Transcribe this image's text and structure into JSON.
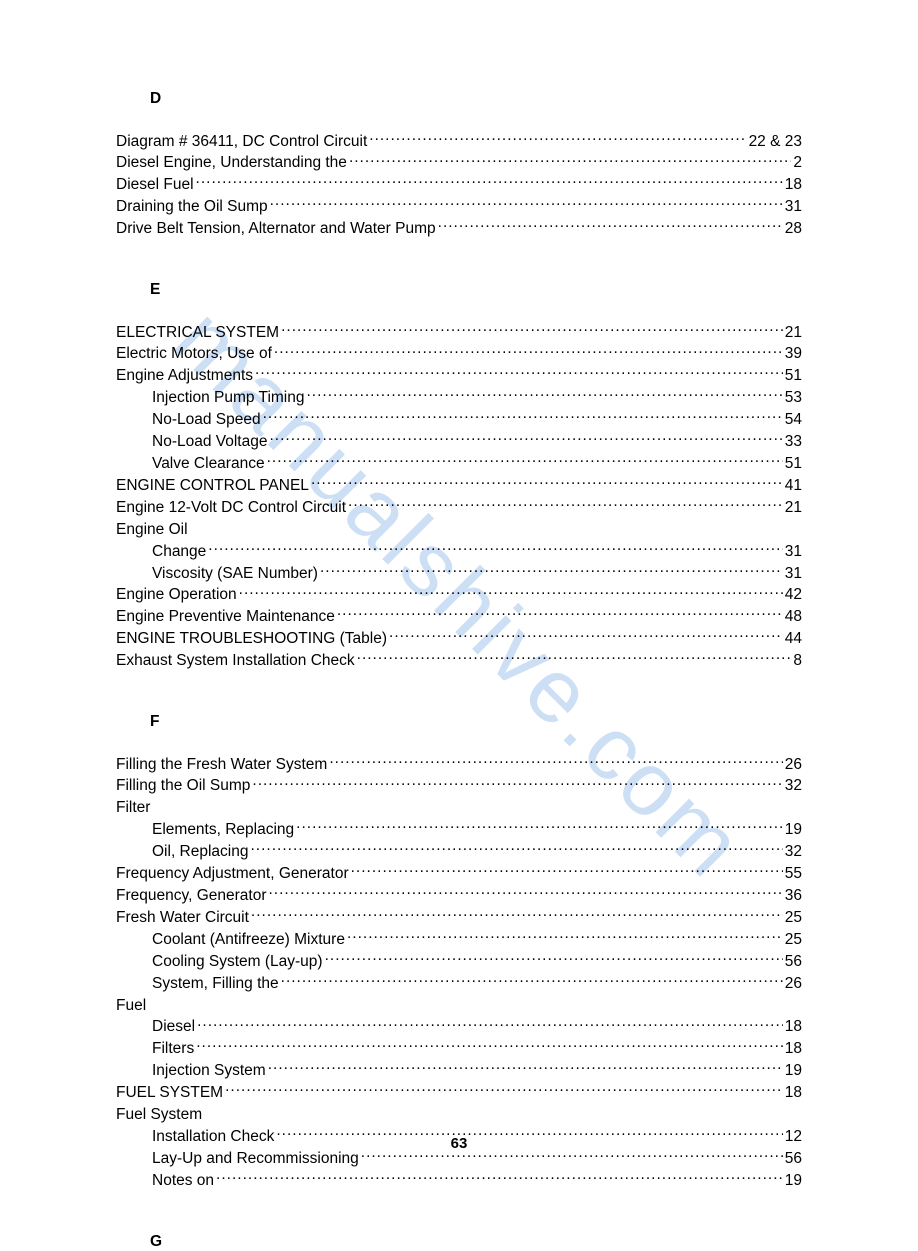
{
  "watermark": "manualshive.com",
  "page_number": "63",
  "sections": [
    {
      "letter": "D",
      "entries": [
        {
          "label": "Diagram # 36411, DC Control Circuit",
          "page": "22 & 23",
          "indent": 0
        },
        {
          "label": "Diesel Engine, Understanding the",
          "page": "2",
          "indent": 0
        },
        {
          "label": "Diesel Fuel",
          "page": "18",
          "indent": 0
        },
        {
          "label": "Draining the Oil Sump",
          "page": "31",
          "indent": 0
        },
        {
          "label": "Drive Belt Tension, Alternator and Water Pump",
          "page": "28",
          "indent": 0
        }
      ]
    },
    {
      "letter": "E",
      "entries": [
        {
          "label": "ELECTRICAL SYSTEM",
          "page": " 21",
          "indent": 0
        },
        {
          "label": "Electric Motors, Use of",
          "page": "39",
          "indent": 0
        },
        {
          "label": "Engine Adjustments",
          "page": "51",
          "indent": 0
        },
        {
          "label": "Injection Pump Timing",
          "page": "53",
          "indent": 1
        },
        {
          "label": "No-Load Speed",
          "page": "54",
          "indent": 1
        },
        {
          "label": "No-Load Voltage",
          "page": "33",
          "indent": 1
        },
        {
          "label": "Valve Clearance",
          "page": "51",
          "indent": 1
        },
        {
          "label": "ENGINE CONTROL PANEL",
          "page": " 41",
          "indent": 0
        },
        {
          "label": "Engine 12-Volt DC Control Circuit",
          "page": "21",
          "indent": 0
        },
        {
          "label": "Engine Oil",
          "page": "",
          "indent": 0,
          "nopage": true
        },
        {
          "label": "Change",
          "page": " 31",
          "indent": 1
        },
        {
          "label": "Viscosity (SAE Number)",
          "page": " 31",
          "indent": 1
        },
        {
          "label": "Engine Operation",
          "page": " 42",
          "indent": 0
        },
        {
          "label": "Engine Preventive Maintenance",
          "page": " 48",
          "indent": 0
        },
        {
          "label": "ENGINE TROUBLESHOOTING (Table)",
          "page": " 44",
          "indent": 0
        },
        {
          "label": "Exhaust System Installation Check",
          "page": " 8",
          "indent": 0
        }
      ]
    },
    {
      "letter": "F",
      "entries": [
        {
          "label": "Filling the Fresh Water System",
          "page": "26",
          "indent": 0
        },
        {
          "label": "Filling the Oil Sump",
          "page": "32",
          "indent": 0
        },
        {
          "label": "Filter",
          "page": "",
          "indent": 0,
          "nopage": true
        },
        {
          "label": "Elements, Replacing",
          "page": " 19",
          "indent": 1
        },
        {
          "label": "Oil, Replacing",
          "page": "32",
          "indent": 1
        },
        {
          "label": "Frequency Adjustment, Generator",
          "page": "55",
          "indent": 0
        },
        {
          "label": "Frequency, Generator",
          "page": "36",
          "indent": 0
        },
        {
          "label": "Fresh Water Circuit",
          "page": "25",
          "indent": 0
        },
        {
          "label": "Coolant (Antifreeze) Mixture",
          "page": "25",
          "indent": 1
        },
        {
          "label": "Cooling System (Lay-up)",
          "page": "56",
          "indent": 1
        },
        {
          "label": "System, Filling the",
          "page": "26",
          "indent": 1
        },
        {
          "label": "Fuel",
          "page": "",
          "indent": 0,
          "nopage": true
        },
        {
          "label": "Diesel",
          "page": " 18",
          "indent": 1
        },
        {
          "label": "Filters",
          "page": " 18",
          "indent": 1
        },
        {
          "label": "Injection System",
          "page": " 19",
          "indent": 1
        },
        {
          "label": "FUEL SYSTEM",
          "page": " 18",
          "indent": 0
        },
        {
          "label": "Fuel System",
          "page": "",
          "indent": 0,
          "nopage": true
        },
        {
          "label": "Installation Check",
          "page": " 12",
          "indent": 1
        },
        {
          "label": "Lay-Up and Recommissioning",
          "page": "56",
          "indent": 1
        },
        {
          "label": "Notes on",
          "page": " 19",
          "indent": 1
        }
      ]
    },
    {
      "letter": "G",
      "entries": []
    }
  ]
}
